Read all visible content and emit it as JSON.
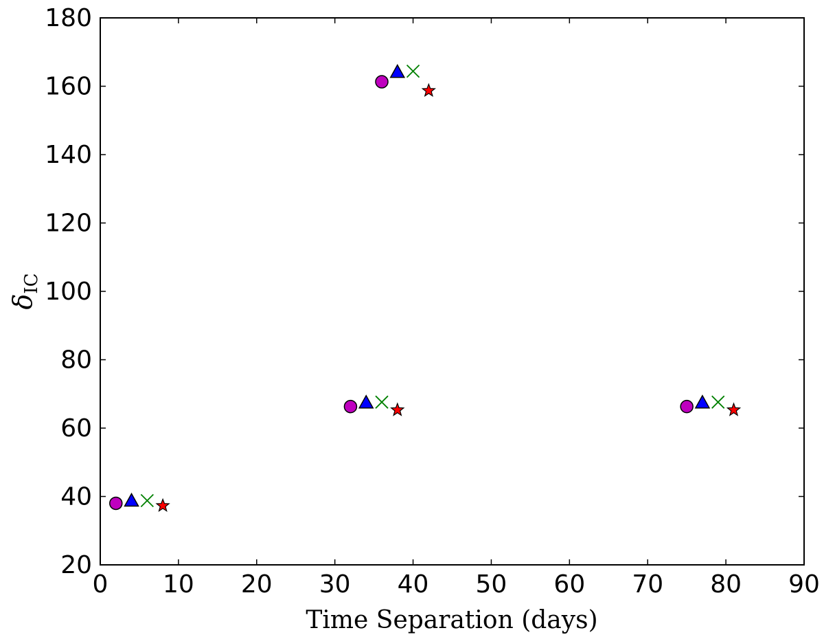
{
  "chart_data": {
    "type": "scatter",
    "title": "",
    "xlabel": "Time Separation (days)",
    "ylabel": "δ",
    "ylabel_subscript": "IC",
    "xlim": [
      0,
      90
    ],
    "ylim": [
      20,
      180
    ],
    "xticks": [
      "0",
      "10",
      "20",
      "30",
      "40",
      "50",
      "60",
      "70",
      "80",
      "90"
    ],
    "yticks": [
      "20",
      "40",
      "60",
      "80",
      "100",
      "120",
      "140",
      "160",
      "180"
    ],
    "grid": false,
    "legend": "none",
    "series": [
      {
        "marker": "circle",
        "color": "#bf00bf",
        "edge": "#000000",
        "points": [
          [
            2,
            38
          ],
          [
            36,
            161.3
          ],
          [
            32,
            66.3
          ],
          [
            75,
            66.3
          ]
        ]
      },
      {
        "marker": "triangle",
        "color": "#0000ff",
        "edge": "#000000",
        "points": [
          [
            4,
            38.8
          ],
          [
            38,
            164.2
          ],
          [
            34,
            67.5
          ],
          [
            77,
            67.5
          ]
        ]
      },
      {
        "marker": "x",
        "color": "#008000",
        "edge": "#008000",
        "points": [
          [
            6,
            38.8
          ],
          [
            40,
            164.4
          ],
          [
            36,
            67.6
          ],
          [
            79,
            67.6
          ]
        ]
      },
      {
        "marker": "star",
        "color": "#ff0000",
        "edge": "#000000",
        "points": [
          [
            8,
            37.3
          ],
          [
            42,
            158.7
          ],
          [
            38,
            65.3
          ],
          [
            81,
            65.3
          ]
        ]
      }
    ]
  }
}
